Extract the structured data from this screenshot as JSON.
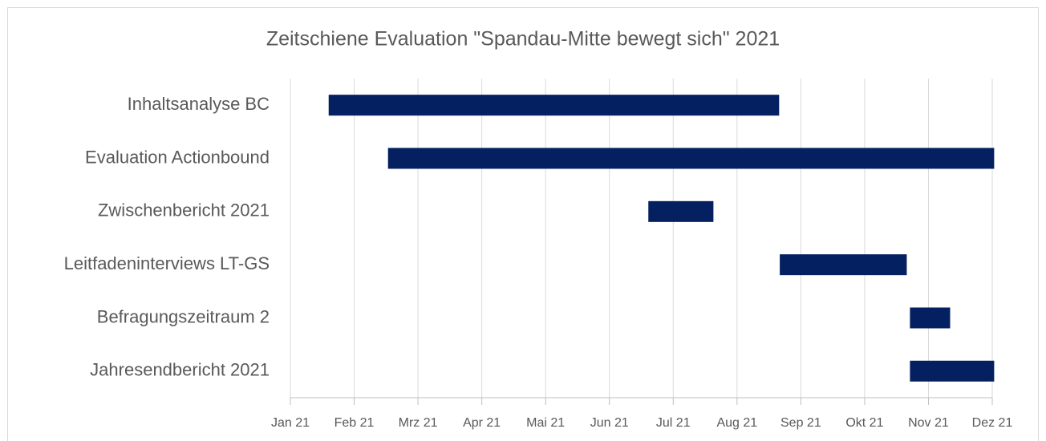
{
  "chart_data": {
    "type": "gantt",
    "title": "Zeitschiene Evaluation \"Spandau-Mitte bewegt sich\" 2021",
    "categories": [
      "Inhaltsanalyse BC",
      "Evaluation Actionbound",
      "Zwischenbericht 2021",
      "Leitfadeninterviews LT-GS",
      "Befragungszeitraum 2",
      "Jahresendbericht 2021"
    ],
    "start": [
      0.6,
      1.53,
      5.61,
      7.67,
      9.71,
      9.71
    ],
    "end": [
      7.66,
      11.03,
      6.63,
      9.66,
      10.34,
      11.03
    ],
    "color": "#042060",
    "xlim": [
      0,
      11
    ],
    "xticks": [
      {
        "value": 0,
        "label": "Jan 21"
      },
      {
        "value": 1,
        "label": "Feb 21"
      },
      {
        "value": 2,
        "label": "Mrz 21"
      },
      {
        "value": 3,
        "label": "Apr 21"
      },
      {
        "value": 4,
        "label": "Mai 21"
      },
      {
        "value": 5,
        "label": "Jun 21"
      },
      {
        "value": 6,
        "label": "Jul 21"
      },
      {
        "value": 7,
        "label": "Aug 21"
      },
      {
        "value": 8,
        "label": "Sep 21"
      },
      {
        "value": 9,
        "label": "Okt 21"
      },
      {
        "value": 10,
        "label": "Nov 21"
      },
      {
        "value": 11,
        "label": "Dez 21"
      }
    ],
    "grid": true
  }
}
